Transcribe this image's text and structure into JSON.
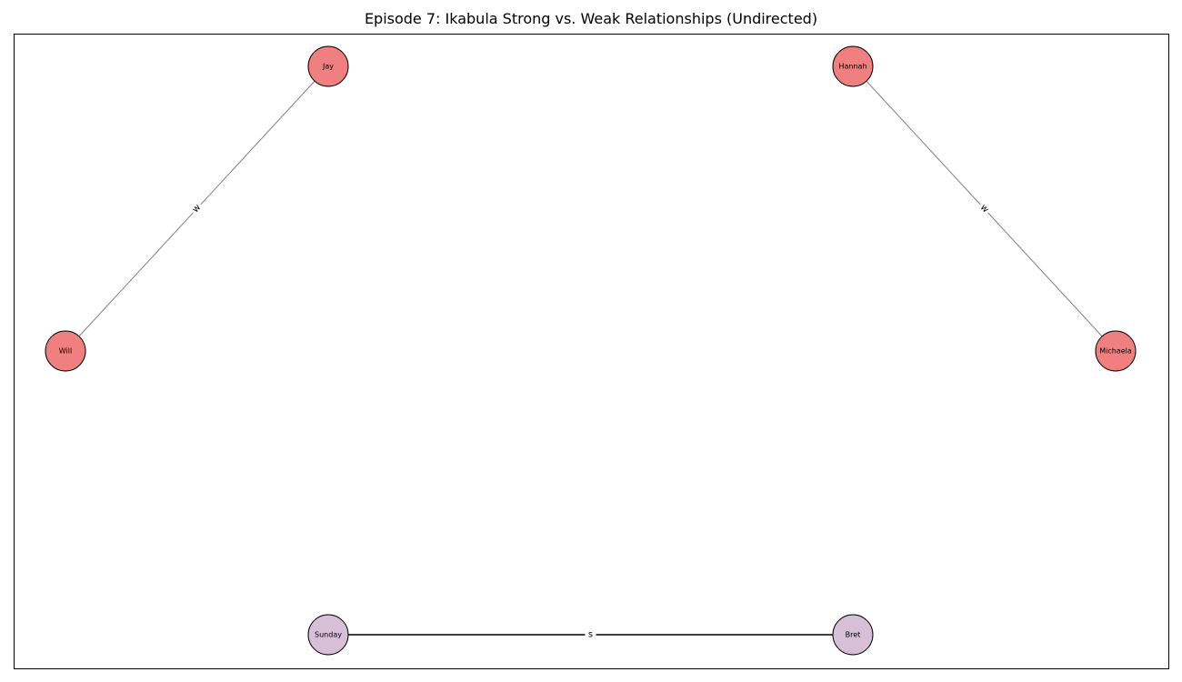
{
  "title": "Episode 7: Ikabula Strong vs. Weak Relationships (Undirected)",
  "colors": {
    "tribe_node": "#f08080",
    "other_node": "#d8bfd8",
    "node_border": "#000000",
    "weak_edge": "#808080",
    "strong_edge": "#000000"
  },
  "nodes": [
    {
      "id": "Jay",
      "label": "Jay",
      "group": "tribe"
    },
    {
      "id": "Hannah",
      "label": "Hannah",
      "group": "tribe"
    },
    {
      "id": "Will",
      "label": "Will",
      "group": "tribe"
    },
    {
      "id": "Michaela",
      "label": "Michaela",
      "group": "tribe"
    },
    {
      "id": "Sunday",
      "label": "Sunday",
      "group": "other"
    },
    {
      "id": "Bret",
      "label": "Bret",
      "group": "other"
    }
  ],
  "edges": [
    {
      "source": "Jay",
      "target": "Will",
      "label": "w",
      "type": "weak"
    },
    {
      "source": "Hannah",
      "target": "Michaela",
      "label": "w",
      "type": "weak"
    },
    {
      "source": "Sunday",
      "target": "Bret",
      "label": "s",
      "type": "strong"
    }
  ]
}
